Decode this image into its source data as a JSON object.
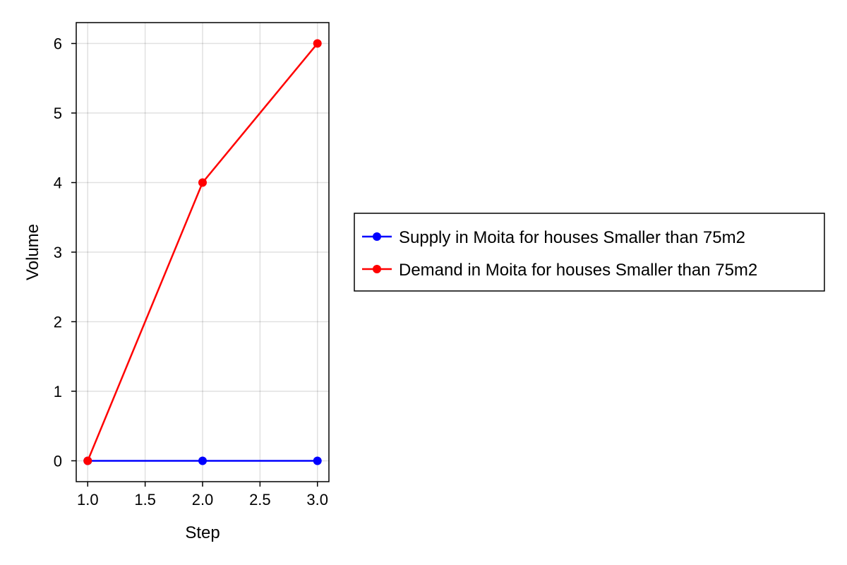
{
  "chart_data": {
    "type": "line",
    "xlabel": "Step",
    "ylabel": "Volume",
    "xlim": [
      0.9,
      3.1
    ],
    "ylim": [
      -0.3,
      6.3
    ],
    "xticks": [
      1.0,
      1.5,
      2.0,
      2.5,
      3.0
    ],
    "xtick_labels": [
      "1.0",
      "1.5",
      "2.0",
      "2.5",
      "3.0"
    ],
    "yticks": [
      0,
      1,
      2,
      3,
      4,
      5,
      6
    ],
    "ytick_labels": [
      "0",
      "1",
      "2",
      "3",
      "4",
      "5",
      "6"
    ],
    "grid": true,
    "legend_position": "right",
    "series": [
      {
        "name": "Supply in Moita for houses Smaller than 75m2",
        "color": "#0000ff",
        "marker": "circle",
        "x": [
          1,
          2,
          3
        ],
        "y": [
          0,
          0,
          0
        ]
      },
      {
        "name": "Demand in Moita for houses Smaller than 75m2",
        "color": "#ff0000",
        "marker": "circle",
        "x": [
          1,
          2,
          3
        ],
        "y": [
          0,
          4,
          6
        ]
      }
    ]
  }
}
